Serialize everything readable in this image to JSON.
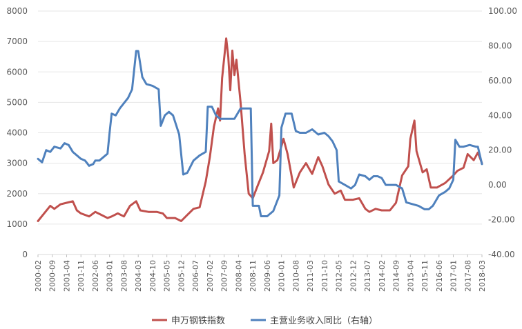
{
  "chart_data": {
    "type": "line",
    "title": "",
    "x_ticks": [
      "2000-02",
      "2000-09",
      "2001-04",
      "2001-11",
      "2002-06",
      "2003-01",
      "2003-08",
      "2004-03",
      "2004-10",
      "2005-05",
      "2005-12",
      "2006-07",
      "2007-02",
      "2007-09",
      "2008-04",
      "2008-11",
      "2009-06",
      "2010-01",
      "2010-08",
      "2011-03",
      "2011-10",
      "2012-05",
      "2012-12",
      "2013-07",
      "2014-02",
      "2014-09",
      "2015-04",
      "2015-11",
      "2016-06",
      "2017-01",
      "2017-08",
      "2018-03"
    ],
    "left_axis": {
      "ticks": [
        "0",
        "1000",
        "2000",
        "3000",
        "4000",
        "5000",
        "6000",
        "7000",
        "8000"
      ],
      "ylim": [
        0,
        8000
      ]
    },
    "right_axis": {
      "ticks": [
        "-40.00",
        "-20.00",
        "0.00",
        "20.00",
        "40.00",
        "60.00",
        "80.00",
        "100.00"
      ],
      "ylim": [
        -40,
        100
      ]
    },
    "legend_position": "bottom",
    "series": [
      {
        "name": "申万钢铁指数",
        "axis": "left",
        "color": "#c0504d",
        "points": [
          [
            "2000-02",
            1100
          ],
          [
            "2000-05",
            1350
          ],
          [
            "2000-08",
            1600
          ],
          [
            "2000-10",
            1500
          ],
          [
            "2001-01",
            1650
          ],
          [
            "2001-04",
            1700
          ],
          [
            "2001-07",
            1750
          ],
          [
            "2001-09",
            1450
          ],
          [
            "2001-11",
            1350
          ],
          [
            "2002-03",
            1250
          ],
          [
            "2002-06",
            1400
          ],
          [
            "2002-09",
            1300
          ],
          [
            "2002-12",
            1200
          ],
          [
            "2003-02",
            1250
          ],
          [
            "2003-05",
            1350
          ],
          [
            "2003-08",
            1250
          ],
          [
            "2003-11",
            1600
          ],
          [
            "2004-02",
            1750
          ],
          [
            "2004-04",
            1450
          ],
          [
            "2004-08",
            1400
          ],
          [
            "2004-12",
            1400
          ],
          [
            "2005-03",
            1350
          ],
          [
            "2005-05",
            1200
          ],
          [
            "2005-09",
            1200
          ],
          [
            "2005-12",
            1100
          ],
          [
            "2006-03",
            1300
          ],
          [
            "2006-06",
            1500
          ],
          [
            "2006-09",
            1550
          ],
          [
            "2006-12",
            2400
          ],
          [
            "2007-02",
            3200
          ],
          [
            "2007-04",
            4200
          ],
          [
            "2007-06",
            4800
          ],
          [
            "2007-07",
            4400
          ],
          [
            "2007-08",
            5800
          ],
          [
            "2007-10",
            7100
          ],
          [
            "2007-11",
            6500
          ],
          [
            "2007-12",
            5400
          ],
          [
            "2008-01",
            6700
          ],
          [
            "2008-02",
            5900
          ],
          [
            "2008-03",
            6400
          ],
          [
            "2008-05",
            5000
          ],
          [
            "2008-07",
            3300
          ],
          [
            "2008-09",
            2000
          ],
          [
            "2008-11",
            1850
          ],
          [
            "2009-01",
            2200
          ],
          [
            "2009-04",
            2700
          ],
          [
            "2009-07",
            3400
          ],
          [
            "2009-08",
            4300
          ],
          [
            "2009-09",
            3000
          ],
          [
            "2009-11",
            3100
          ],
          [
            "2010-02",
            3800
          ],
          [
            "2010-04",
            3300
          ],
          [
            "2010-07",
            2200
          ],
          [
            "2010-10",
            2700
          ],
          [
            "2011-01",
            3000
          ],
          [
            "2011-04",
            2650
          ],
          [
            "2011-07",
            3200
          ],
          [
            "2011-09",
            2900
          ],
          [
            "2011-12",
            2300
          ],
          [
            "2012-03",
            2000
          ],
          [
            "2012-06",
            2100
          ],
          [
            "2012-08",
            1800
          ],
          [
            "2012-12",
            1800
          ],
          [
            "2013-03",
            1850
          ],
          [
            "2013-06",
            1500
          ],
          [
            "2013-08",
            1400
          ],
          [
            "2013-11",
            1500
          ],
          [
            "2014-02",
            1450
          ],
          [
            "2014-06",
            1450
          ],
          [
            "2014-09",
            1700
          ],
          [
            "2014-12",
            2600
          ],
          [
            "2015-03",
            2900
          ],
          [
            "2015-04",
            3800
          ],
          [
            "2015-06",
            4400
          ],
          [
            "2015-07",
            3400
          ],
          [
            "2015-10",
            2700
          ],
          [
            "2015-12",
            2800
          ],
          [
            "2016-02",
            2200
          ],
          [
            "2016-05",
            2200
          ],
          [
            "2016-09",
            2350
          ],
          [
            "2017-01",
            2600
          ],
          [
            "2017-03",
            2750
          ],
          [
            "2017-06",
            2850
          ],
          [
            "2017-08",
            3300
          ],
          [
            "2017-11",
            3100
          ],
          [
            "2018-01",
            3350
          ],
          [
            "2018-03",
            3000
          ]
        ]
      },
      {
        "name": "主营业务收入同比（右轴）",
        "axis": "right",
        "color": "#4f81bd",
        "points": [
          [
            "2000-02",
            15
          ],
          [
            "2000-04",
            13
          ],
          [
            "2000-06",
            20
          ],
          [
            "2000-08",
            19
          ],
          [
            "2000-10",
            22
          ],
          [
            "2001-01",
            21
          ],
          [
            "2001-03",
            24
          ],
          [
            "2001-05",
            23
          ],
          [
            "2001-07",
            19
          ],
          [
            "2001-09",
            17
          ],
          [
            "2001-11",
            15
          ],
          [
            "2002-01",
            14
          ],
          [
            "2002-03",
            11
          ],
          [
            "2002-05",
            12
          ],
          [
            "2002-06",
            14
          ],
          [
            "2002-08",
            14
          ],
          [
            "2002-10",
            16
          ],
          [
            "2002-12",
            18
          ],
          [
            "2003-01",
            30
          ],
          [
            "2003-02",
            41
          ],
          [
            "2003-04",
            40
          ],
          [
            "2003-06",
            44
          ],
          [
            "2003-08",
            47
          ],
          [
            "2003-10",
            50
          ],
          [
            "2003-12",
            55
          ],
          [
            "2004-02",
            77
          ],
          [
            "2004-03",
            77
          ],
          [
            "2004-05",
            62
          ],
          [
            "2004-07",
            58
          ],
          [
            "2004-10",
            57
          ],
          [
            "2005-01",
            55
          ],
          [
            "2005-02",
            34
          ],
          [
            "2005-04",
            40
          ],
          [
            "2005-06",
            42
          ],
          [
            "2005-08",
            40
          ],
          [
            "2005-11",
            29
          ],
          [
            "2006-01",
            6
          ],
          [
            "2006-03",
            7
          ],
          [
            "2006-06",
            14
          ],
          [
            "2006-09",
            17
          ],
          [
            "2006-12",
            19
          ],
          [
            "2007-01",
            45
          ],
          [
            "2007-03",
            45
          ],
          [
            "2007-05",
            40
          ],
          [
            "2007-07",
            38
          ],
          [
            "2007-09",
            38
          ],
          [
            "2007-12",
            38
          ],
          [
            "2008-02",
            38
          ],
          [
            "2008-05",
            44
          ],
          [
            "2008-08",
            44
          ],
          [
            "2008-10",
            44
          ],
          [
            "2008-11",
            -12
          ],
          [
            "2009-02",
            -12
          ],
          [
            "2009-03",
            -18
          ],
          [
            "2009-06",
            -18
          ],
          [
            "2009-09",
            -15
          ],
          [
            "2009-12",
            -6
          ],
          [
            "2010-01",
            33
          ],
          [
            "2010-03",
            41
          ],
          [
            "2010-06",
            41
          ],
          [
            "2010-08",
            31
          ],
          [
            "2010-10",
            30
          ],
          [
            "2011-01",
            30
          ],
          [
            "2011-04",
            32
          ],
          [
            "2011-07",
            29
          ],
          [
            "2011-10",
            30
          ],
          [
            "2011-12",
            28
          ],
          [
            "2012-02",
            25
          ],
          [
            "2012-04",
            20
          ],
          [
            "2012-05",
            2
          ],
          [
            "2012-08",
            0
          ],
          [
            "2012-11",
            -2
          ],
          [
            "2013-01",
            0
          ],
          [
            "2013-03",
            6
          ],
          [
            "2013-06",
            5
          ],
          [
            "2013-08",
            3
          ],
          [
            "2013-10",
            5
          ],
          [
            "2013-12",
            5
          ],
          [
            "2014-02",
            4
          ],
          [
            "2014-04",
            0
          ],
          [
            "2014-07",
            0
          ],
          [
            "2014-09",
            0
          ],
          [
            "2014-12",
            -2
          ],
          [
            "2015-02",
            -10
          ],
          [
            "2015-05",
            -11
          ],
          [
            "2015-08",
            -12
          ],
          [
            "2015-11",
            -14
          ],
          [
            "2016-01",
            -14
          ],
          [
            "2016-03",
            -12
          ],
          [
            "2016-06",
            -6
          ],
          [
            "2016-09",
            -4
          ],
          [
            "2016-11",
            -2
          ],
          [
            "2017-01",
            3
          ],
          [
            "2017-02",
            26
          ],
          [
            "2017-04",
            22
          ],
          [
            "2017-06",
            22
          ],
          [
            "2017-09",
            23
          ],
          [
            "2017-12",
            22
          ],
          [
            "2018-01",
            22
          ],
          [
            "2018-03",
            12
          ]
        ]
      }
    ]
  }
}
